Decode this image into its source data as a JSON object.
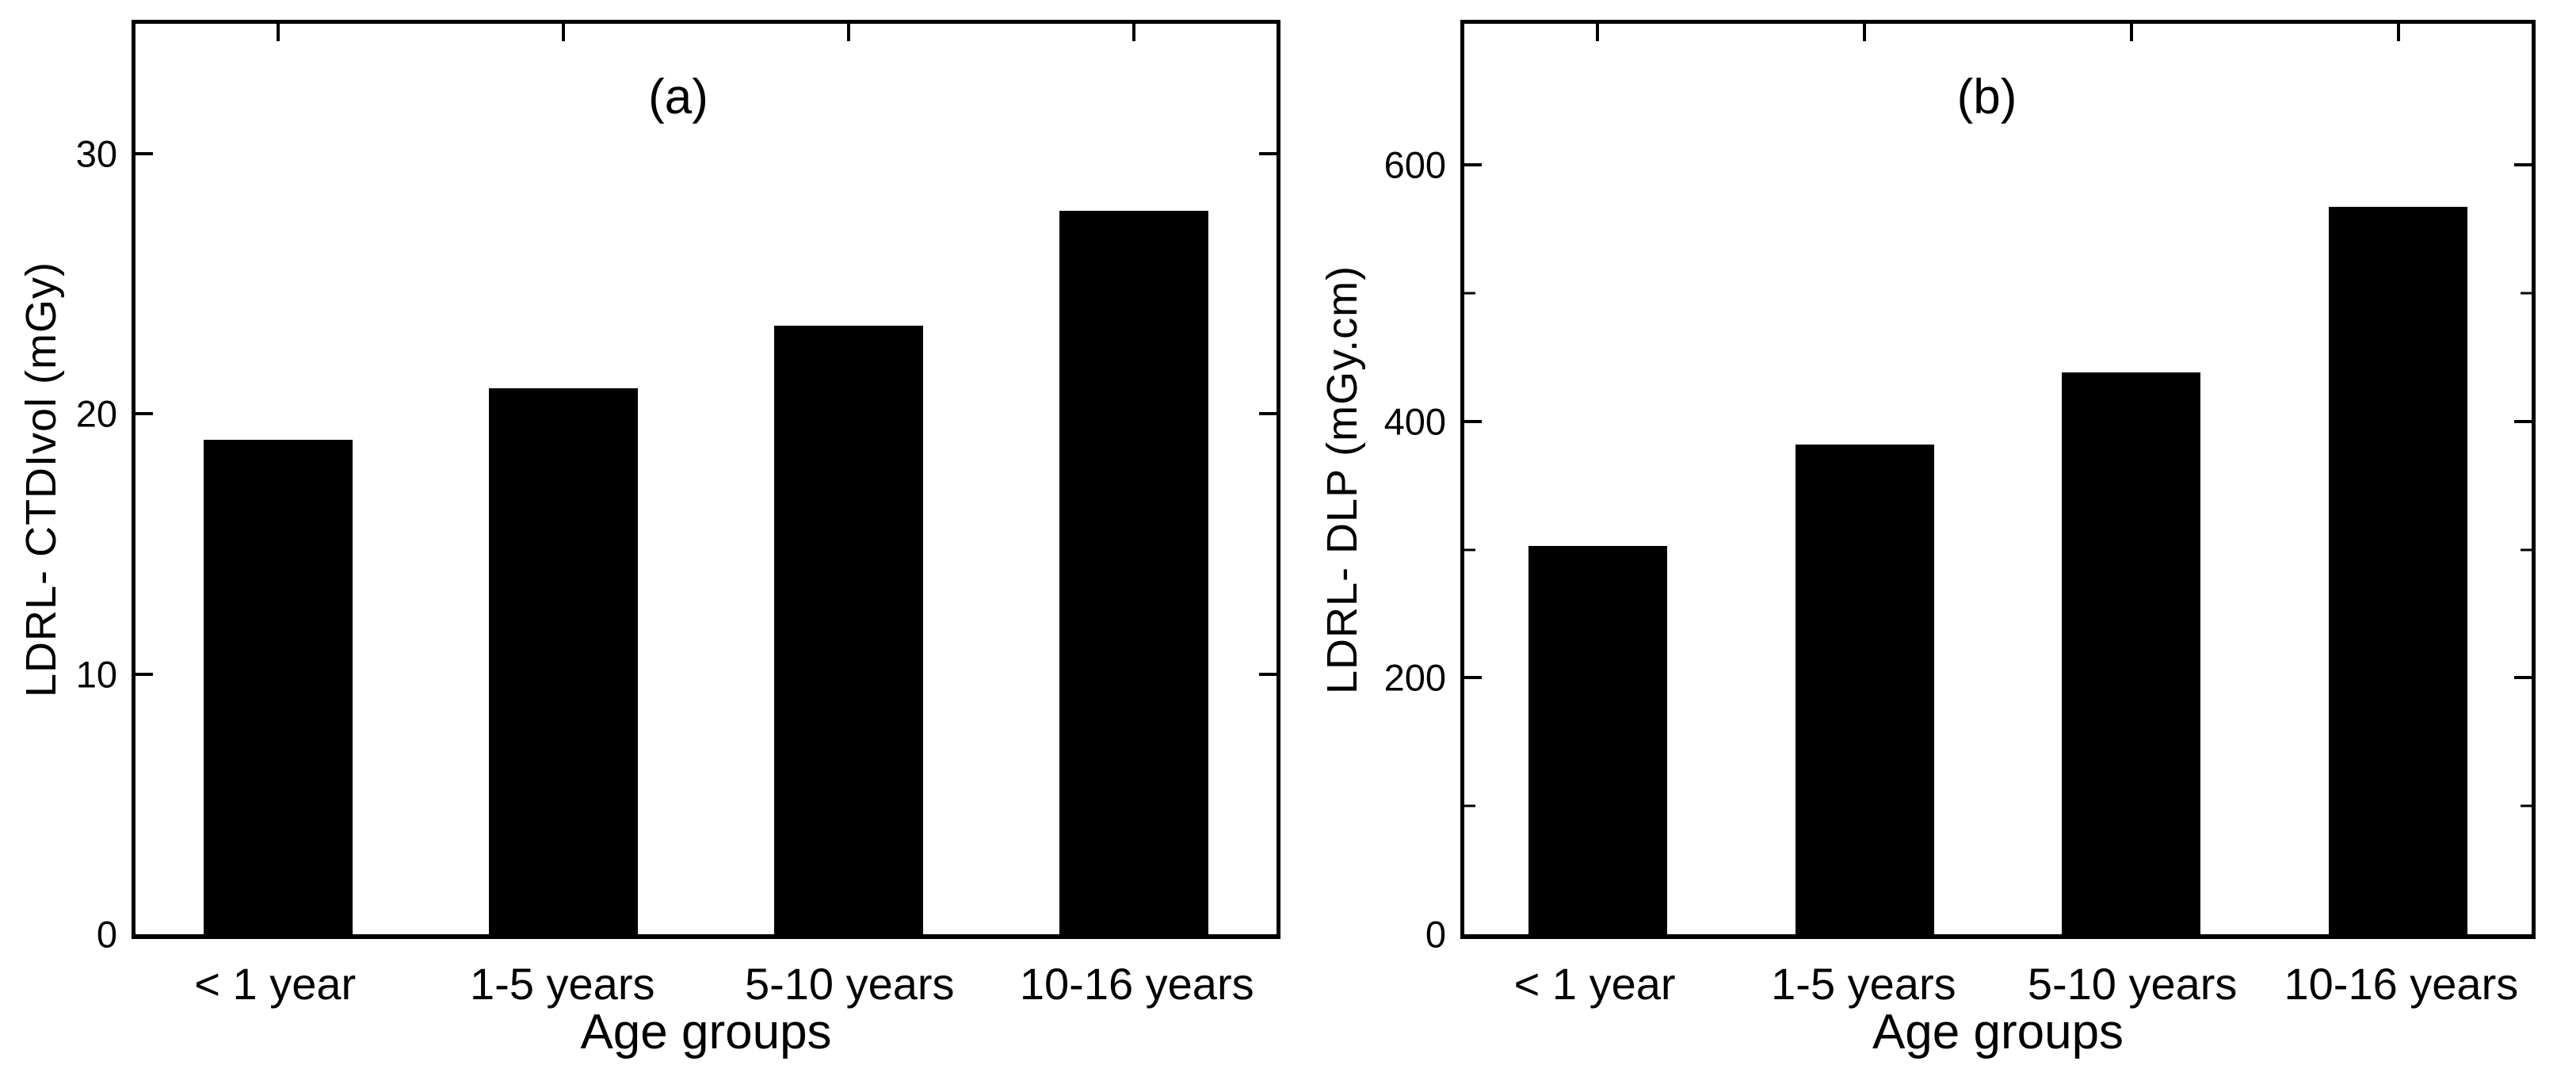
{
  "figure": {
    "description": "Two-panel black bar figure of local diagnostic reference levels by pediatric age group",
    "background_color": "#ffffff",
    "bar_color": "#000000",
    "axis_color": "#000000",
    "text_color": "#000000"
  },
  "chart_data": [
    {
      "panel": "a",
      "type": "bar",
      "title": "(a)",
      "xlabel": "Age groups",
      "ylabel": "LDRL- CTDIvol (mGy)",
      "categories": [
        "< 1 year",
        "1-5 years",
        "5-10 years",
        "10-16 years"
      ],
      "values": [
        19,
        21,
        23.4,
        27.8
      ],
      "ylim": [
        0,
        35
      ],
      "yticks_major": [
        0,
        10,
        20,
        30
      ],
      "yticks_minor": [],
      "grid": false,
      "legend": "none",
      "bar_color": "#000000"
    },
    {
      "panel": "b",
      "type": "bar",
      "title": "(b)",
      "xlabel": "Age groups",
      "ylabel": "LDRL- DLP (mGy.cm)",
      "categories": [
        "< 1 year",
        "1-5 years",
        "5-10 years",
        "10-16 years"
      ],
      "values": [
        303,
        382,
        438,
        567
      ],
      "ylim": [
        0,
        710
      ],
      "yticks_major": [
        0,
        200,
        400,
        600
      ],
      "yticks_minor": [
        100,
        300,
        500
      ],
      "grid": false,
      "legend": "none",
      "bar_color": "#000000"
    }
  ]
}
